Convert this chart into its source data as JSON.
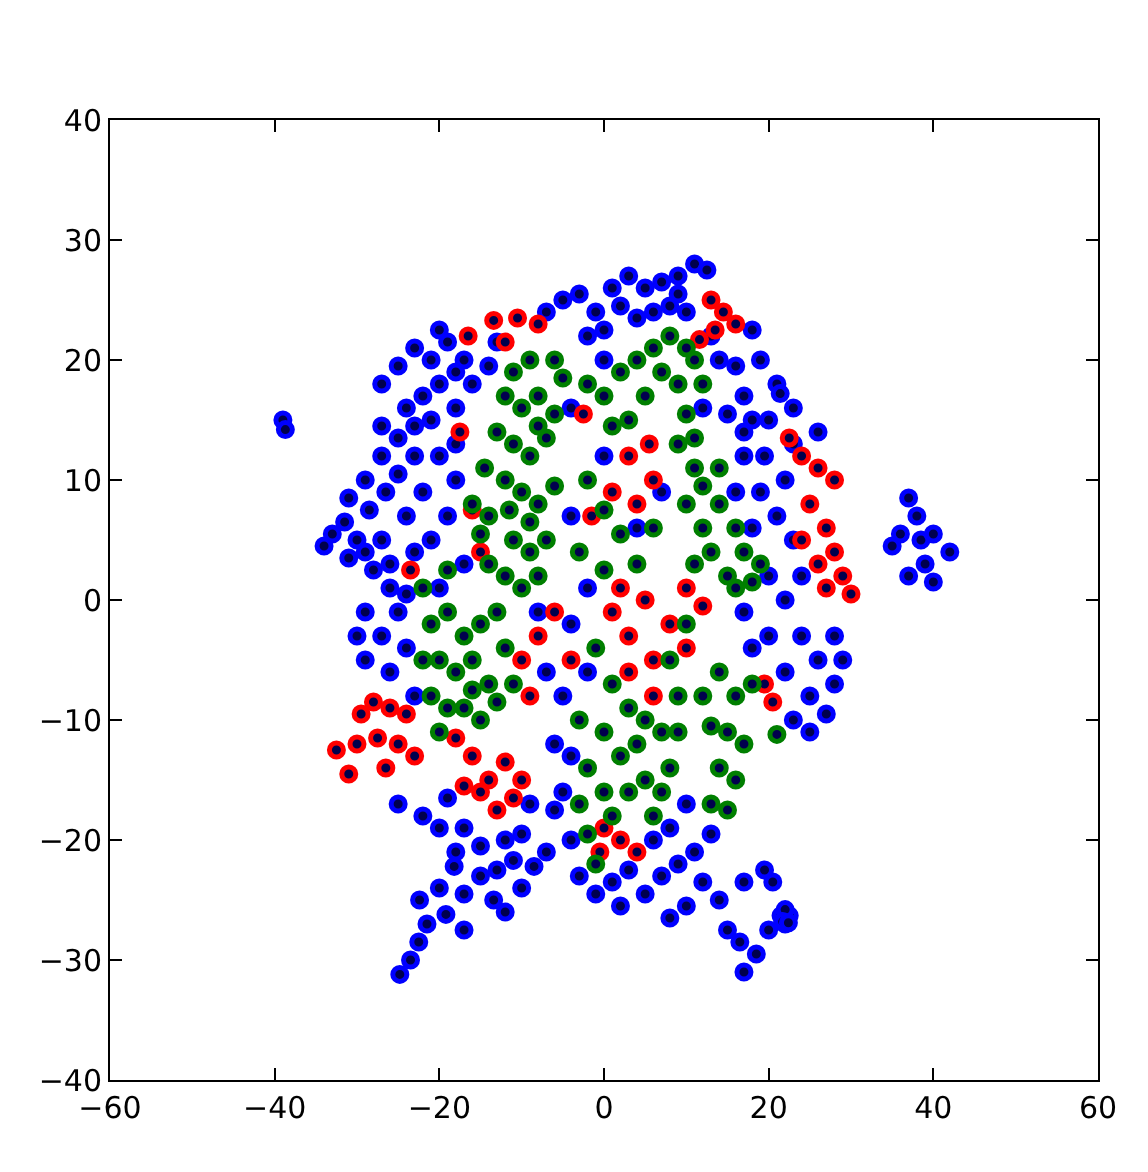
{
  "chart_data": {
    "type": "scatter",
    "xlim": [
      -60,
      60
    ],
    "ylim": [
      -40,
      40
    ],
    "xticks": [
      -60,
      -40,
      -20,
      0,
      20,
      40,
      60
    ],
    "yticks": [
      -40,
      -30,
      -20,
      -10,
      0,
      10,
      20,
      30,
      40
    ],
    "marker": "circle",
    "series": [
      {
        "color": "#0000ff",
        "x": [
          -39,
          -38.7,
          -33,
          -31.5,
          -30,
          -31,
          -29,
          -28,
          -27,
          -26,
          -28.5,
          -26.5,
          -25,
          -27,
          -25,
          -23,
          -26,
          -24,
          -23,
          -24,
          -22,
          -27,
          -25,
          -23,
          -21,
          -19,
          -17,
          -20,
          -22,
          -16,
          -14,
          -18,
          -21,
          -24,
          -13,
          -20,
          -18,
          -19,
          -21,
          -17,
          -20,
          -25,
          -29,
          -27,
          -29,
          -26,
          -24,
          -23,
          -25,
          -22,
          -19,
          -17,
          -13,
          -12,
          -15,
          -24.8,
          -23.5,
          -22.5,
          -21.5,
          -22.4,
          -19.2,
          -20,
          -18.2,
          -17,
          -13.4,
          -15,
          -11,
          -8.5,
          -10,
          -9,
          -7,
          -5,
          -6,
          -8,
          -2,
          0,
          -4,
          0,
          -4,
          -2,
          -4,
          -2,
          -4,
          -5,
          -4,
          -3,
          -1,
          1,
          3,
          5,
          7,
          9,
          11,
          13,
          12,
          10,
          8,
          6,
          8,
          10,
          14,
          15,
          16.5,
          17,
          18.5,
          20,
          19.5,
          20.5,
          21.5,
          22.5,
          22,
          22,
          21.7,
          22.4,
          -7,
          -5,
          -3,
          -1,
          1,
          3,
          5,
          7,
          9,
          11,
          12.5,
          4,
          8,
          10,
          13,
          14,
          16,
          17,
          15,
          18,
          12,
          19,
          21,
          20,
          23,
          22,
          21,
          19,
          17,
          16,
          18,
          20,
          22,
          20,
          24,
          26,
          28,
          25,
          23,
          27,
          22,
          18,
          17,
          24,
          23,
          21.4,
          26,
          7,
          4,
          37,
          38,
          36,
          38.5,
          40,
          42,
          39,
          37,
          40,
          35,
          0,
          2,
          6,
          9,
          -20,
          -18,
          -31,
          -29,
          -27,
          -23,
          -34,
          -18,
          -30,
          -20,
          -18,
          -17,
          -10,
          -12,
          -6,
          -7,
          2,
          17,
          29,
          25,
          28,
          18,
          19.5,
          17,
          23
        ],
        "values": [
          15,
          14.2,
          5.5,
          6.5,
          5,
          3.5,
          4,
          2.5,
          5,
          3,
          7.5,
          9,
          10.5,
          12,
          13.5,
          12,
          1,
          0.5,
          4,
          7,
          9,
          18,
          19.5,
          21,
          20,
          21.5,
          20,
          18,
          17,
          18,
          19.5,
          16,
          15,
          16,
          21.5,
          12,
          10,
          7,
          5,
          3,
          1,
          -1,
          -1,
          -3,
          -5,
          -6,
          -4,
          -8,
          -17,
          -18,
          -16.5,
          -19,
          -22.5,
          -20,
          -20.5,
          -31.2,
          -30,
          -28.5,
          -27,
          -25,
          -26.2,
          -24,
          -22.2,
          -24.5,
          -25,
          -23,
          -21.7,
          -22.2,
          -19.5,
          -17,
          -6,
          -8,
          -12,
          -1,
          22,
          20,
          16,
          12,
          7,
          1,
          -2,
          -6,
          -13,
          -16,
          -20,
          -23,
          -24.5,
          -23.5,
          -22.5,
          -24.5,
          -23,
          -22,
          -21,
          -19.5,
          -23.5,
          -25.5,
          -26.5,
          -20,
          -19,
          -17,
          -25,
          -27.5,
          -28.5,
          -31,
          -29.5,
          -27.5,
          -22.5,
          -23.5,
          -26.3,
          -26.3,
          -25.8,
          -27,
          -26.8,
          -26.9,
          24,
          25,
          25.5,
          24,
          26,
          27,
          26,
          26.5,
          27,
          28,
          27.5,
          23.5,
          24.5,
          24,
          22,
          20,
          19.5,
          17,
          15.5,
          15,
          16,
          20,
          18,
          15,
          13,
          10,
          7,
          9,
          12,
          9,
          6,
          2,
          0,
          -3,
          -3,
          -5,
          -7,
          -8,
          -10,
          -9.5,
          -6,
          -4,
          -1,
          2,
          5,
          17.2,
          14,
          9,
          6,
          8.5,
          7,
          5.5,
          5,
          5.5,
          4,
          3,
          2,
          1.5,
          4.5,
          22.5,
          24.5,
          24,
          25.5,
          22.5,
          19,
          8.5,
          10,
          14.5,
          14.5,
          4.5,
          13,
          -3,
          -19,
          -21,
          -27.5,
          -24,
          -26,
          -17.5,
          -21,
          -25.5,
          -23.5,
          -5,
          -11,
          -3,
          22.5,
          12,
          14,
          16
        ]
      },
      {
        "color": "#ff0000",
        "x": [
          -32.5,
          -31,
          -30,
          -29.5,
          -28,
          -27.5,
          -26,
          -25,
          -24,
          -26.5,
          -23,
          -18,
          -16,
          -14,
          -12,
          -17,
          -13,
          -11,
          -10,
          -23.5,
          -16,
          -15,
          -17.5,
          -16.5,
          -13.4,
          -10.5,
          -8,
          -12,
          -10,
          -8,
          -9,
          -6,
          1,
          3,
          5,
          8,
          10,
          6,
          2,
          1,
          4,
          6,
          3,
          5.5,
          -2.5,
          22.5,
          24,
          26,
          28,
          25,
          27,
          28,
          29,
          30,
          27,
          26,
          24,
          13,
          14.5,
          16,
          13.5,
          11.6,
          0,
          2,
          4,
          -0.5,
          19.5,
          20.5,
          10,
          12,
          -15,
          -1.5,
          3,
          6,
          -4
        ],
        "values": [
          -12.5,
          -14.5,
          -12,
          -9.5,
          -8.5,
          -11.5,
          -9,
          -12,
          -9.5,
          -14,
          -13,
          -11.5,
          -13,
          -15,
          -13.5,
          -15.5,
          -17.5,
          -16.5,
          -15,
          2.5,
          7.5,
          4,
          14,
          22,
          23.3,
          23.5,
          23,
          21.5,
          -5,
          -3,
          -8,
          -1,
          -1,
          -3,
          0,
          -2,
          -4,
          -5,
          1,
          9,
          8,
          10,
          12,
          13,
          15.5,
          13.5,
          12,
          11,
          10,
          8,
          6,
          4,
          2,
          0.5,
          1,
          3,
          5,
          25,
          24,
          23,
          22.5,
          21.7,
          -19,
          -20,
          -21,
          -21,
          -7,
          -8.5,
          1,
          -0.5,
          -16,
          7,
          -6,
          -8,
          -5
        ]
      },
      {
        "color": "#007f00",
        "x": [
          -11,
          -9,
          -6,
          -5,
          -12,
          -10,
          -8,
          -13,
          -11,
          -9,
          -7,
          -12,
          -10,
          -8,
          -6,
          -14,
          -16,
          -11,
          -9,
          -7,
          -12,
          -10,
          -8,
          -14,
          -15,
          -22,
          -19,
          -21,
          -19,
          -17,
          -15,
          -13,
          -20,
          -18,
          -16,
          -14,
          -12,
          -21,
          -19,
          -17,
          -15,
          -13,
          -11,
          -20,
          -22,
          -2,
          0,
          2,
          4,
          6,
          8,
          10,
          7,
          5,
          3,
          1,
          9,
          11,
          -2,
          0,
          2,
          -3,
          0,
          4,
          6,
          -1,
          1,
          3,
          -3,
          0,
          2,
          4,
          -2,
          0,
          3,
          5,
          -3,
          1,
          6,
          -2,
          -1,
          7,
          8,
          9,
          9,
          11,
          10,
          12,
          14,
          13,
          15,
          17,
          16,
          18,
          19,
          11,
          12,
          14,
          16,
          18,
          13,
          15,
          17,
          14,
          16,
          13,
          15,
          12,
          21,
          10,
          8,
          -14.5,
          -11.5,
          -8,
          -6,
          -9,
          -16,
          5,
          7,
          9,
          12,
          10,
          14,
          16,
          11
        ],
        "values": [
          19,
          20,
          20,
          18.5,
          17,
          16,
          17,
          14,
          13,
          12,
          13.5,
          10,
          9,
          8,
          9.5,
          7,
          8,
          5,
          4,
          5,
          2,
          1,
          2,
          3,
          5.5,
          1,
          2.5,
          -2,
          -1,
          -3,
          -2,
          -1,
          -5,
          -6,
          -5,
          -7,
          -4,
          -8,
          -9,
          -9,
          -10,
          -8.5,
          -7,
          -11,
          -5,
          18,
          17,
          19,
          20,
          21,
          22,
          21,
          19,
          17,
          15,
          14.5,
          18,
          20,
          10,
          7.5,
          5.5,
          4,
          2.5,
          3,
          6,
          -4,
          -7,
          -9,
          -10,
          -11,
          -13,
          -12,
          -14,
          -16,
          -16,
          -15,
          -17,
          -18,
          -18,
          -19.5,
          -22,
          -11,
          -14,
          -8,
          13,
          11,
          8,
          6,
          8,
          4,
          2,
          4,
          1,
          1.5,
          3,
          13.5,
          9.5,
          -6,
          -8,
          -7,
          -10.5,
          -11,
          -12,
          -14,
          -15,
          -17,
          -17.5,
          -8,
          -11.2,
          -2,
          -5,
          11,
          7.5,
          14.5,
          15.5,
          6.5,
          -7.5,
          -10,
          -16,
          -11,
          18,
          15.5,
          11,
          6,
          3
        ]
      }
    ]
  }
}
